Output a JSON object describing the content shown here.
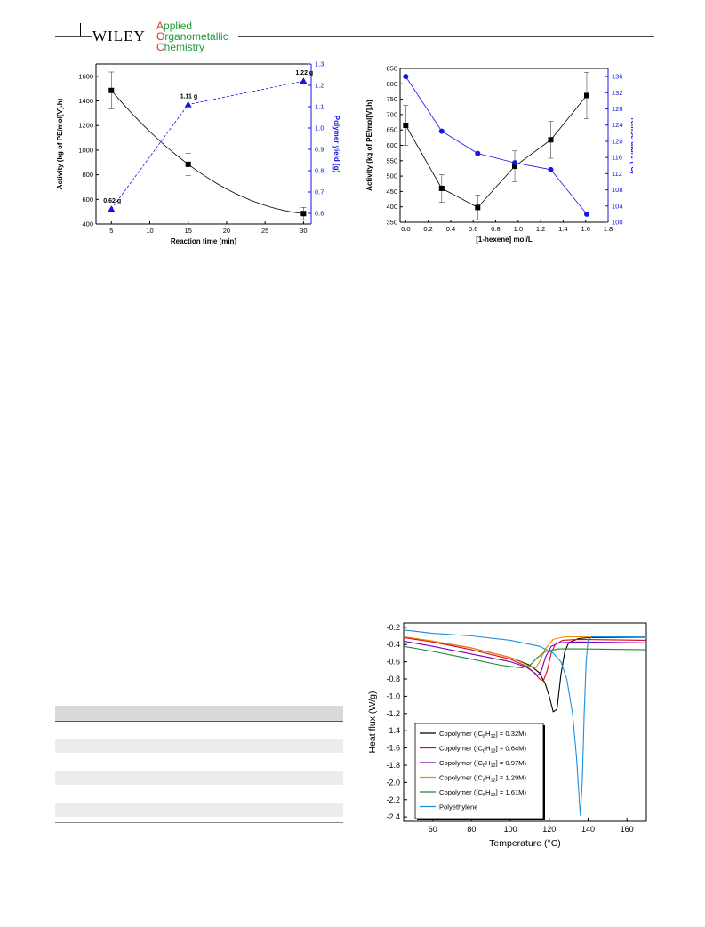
{
  "header": {
    "publisher": "WILEY",
    "journal_lines": [
      "Applied",
      "Organometallic",
      "Chemistry"
    ]
  },
  "colors": {
    "blue": "#1414e6",
    "black": "#000000",
    "table_header": "#d9d9d9",
    "table_band": "#ececec"
  },
  "chart_data": [
    {
      "type": "scatter",
      "xlabel": "Reaction time (min)",
      "ylabel": "Activity (kg of PE/mol[V].h)",
      "y2label": "Polymer yield (g)",
      "xlim": [
        3,
        31
      ],
      "ylim": [
        400,
        1700
      ],
      "y2lim": [
        0.55,
        1.3
      ],
      "x_ticks": [
        "5",
        "10",
        "15",
        "20",
        "25",
        "30"
      ],
      "y_ticks": [
        "400",
        "600",
        "800",
        "1000",
        "1200",
        "1400",
        "1600"
      ],
      "y2_ticks": [
        "0.6",
        "0.7",
        "0.8",
        "0.9",
        "1.0",
        "1.1",
        "1.2",
        "1.3"
      ],
      "series": [
        {
          "axis": "left",
          "color": "#000000",
          "marker": "square",
          "line": "fit",
          "x": [
            5,
            15,
            30
          ],
          "y": [
            1485,
            885,
            485
          ],
          "err": [
            150,
            90,
            50
          ]
        },
        {
          "axis": "right",
          "color": "#1414e6",
          "marker": "triangle",
          "line": "dashed",
          "x": [
            5,
            15,
            30
          ],
          "y": [
            0.62,
            1.11,
            1.22
          ],
          "labels": [
            "0.62 g",
            "1.11 g",
            "1.22 g"
          ]
        }
      ],
      "grid": false
    },
    {
      "type": "scatter",
      "xlabel": "[1-hexene] mol/L",
      "ylabel": "Activity (kg of PE/mol[V].h)",
      "y2label": "Temperature (°C)",
      "xlim": [
        -0.05,
        1.8
      ],
      "ylim": [
        350,
        850
      ],
      "y2lim": [
        100,
        138
      ],
      "x_ticks": [
        "0.0",
        "0.2",
        "0.4",
        "0.6",
        "0.8",
        "1.0",
        "1.2",
        "1.4",
        "1.6",
        "1.8"
      ],
      "y_ticks": [
        "350",
        "400",
        "450",
        "500",
        "550",
        "600",
        "650",
        "700",
        "750",
        "800",
        "850"
      ],
      "y2_ticks": [
        "100",
        "104",
        "108",
        "112",
        "116",
        "120",
        "124",
        "128",
        "132",
        "136"
      ],
      "series": [
        {
          "axis": "left",
          "color": "#000000",
          "marker": "square",
          "line": "solid",
          "x": [
            0,
            0.32,
            0.64,
            0.97,
            1.29,
            1.61
          ],
          "y": [
            665,
            460,
            398,
            532,
            618,
            762
          ],
          "err": [
            65,
            45,
            40,
            50,
            60,
            75
          ]
        },
        {
          "axis": "right",
          "color": "#1414e6",
          "marker": "circle",
          "line": "solid",
          "x": [
            0,
            0.32,
            0.64,
            0.97,
            1.29,
            1.61
          ],
          "y": [
            136,
            122.5,
            117,
            114.7,
            113,
            102
          ]
        }
      ],
      "grid": false
    },
    {
      "type": "line",
      "xlabel": "Temperature (°C)",
      "ylabel": "Heat flux (W/g)",
      "xlim": [
        45,
        170
      ],
      "ylim": [
        -2.45,
        -0.15
      ],
      "x_ticks": [
        "60",
        "80",
        "100",
        "120",
        "140",
        "160"
      ],
      "y_ticks": [
        "-0.2",
        "-0.4",
        "-0.6",
        "-0.8",
        "-1.0",
        "-1.2",
        "-1.4",
        "-1.6",
        "-1.8",
        "-2.0",
        "-2.2",
        "-2.4"
      ],
      "legend": "bottom-left",
      "series": [
        {
          "legend_prefix": "Copolymer ([C",
          "legend_value": " = 0.32M)",
          "color": "#000000",
          "x": [
            45,
            60,
            80,
            100,
            110,
            115,
            118,
            120,
            122,
            124,
            126,
            128,
            130,
            135,
            140,
            170
          ],
          "y": [
            -0.31,
            -0.36,
            -0.44,
            -0.55,
            -0.64,
            -0.73,
            -0.86,
            -1.0,
            -1.18,
            -1.15,
            -0.75,
            -0.48,
            -0.38,
            -0.33,
            -0.32,
            -0.32
          ]
        },
        {
          "legend_prefix": "Copolymer ([C",
          "legend_value": " = 0.64M)",
          "color": "#e4001b",
          "x": [
            45,
            60,
            80,
            100,
            108,
            112,
            115,
            117,
            119,
            121,
            123,
            127,
            135,
            170
          ],
          "y": [
            -0.32,
            -0.37,
            -0.46,
            -0.57,
            -0.65,
            -0.72,
            -0.8,
            -0.82,
            -0.7,
            -0.5,
            -0.4,
            -0.35,
            -0.34,
            -0.35
          ]
        },
        {
          "legend_prefix": "Copolymer ([C",
          "legend_value": " = 0.97M)",
          "color": "#7a00b4",
          "x": [
            45,
            60,
            80,
            100,
            108,
            112,
            114,
            116,
            118,
            121,
            125,
            135,
            170
          ],
          "y": [
            -0.36,
            -0.42,
            -0.51,
            -0.6,
            -0.66,
            -0.72,
            -0.76,
            -0.7,
            -0.55,
            -0.42,
            -0.38,
            -0.37,
            -0.38
          ]
        },
        {
          "legend_prefix": "Copolymer ([C",
          "legend_value": " = 1.29M)",
          "color": "#f08a00",
          "x": [
            45,
            60,
            80,
            100,
            106,
            110,
            113,
            115,
            118,
            122,
            128,
            135,
            170
          ],
          "y": [
            -0.31,
            -0.36,
            -0.44,
            -0.55,
            -0.61,
            -0.65,
            -0.67,
            -0.6,
            -0.45,
            -0.34,
            -0.31,
            -0.31,
            -0.32
          ]
        },
        {
          "legend_prefix": "Copolymer ([C",
          "legend_value": " = 1.61M)",
          "color": "#1a8a3a",
          "x": [
            45,
            60,
            80,
            95,
            102,
            106,
            110,
            114,
            118,
            125,
            135,
            170
          ],
          "y": [
            -0.42,
            -0.48,
            -0.57,
            -0.64,
            -0.66,
            -0.67,
            -0.64,
            -0.55,
            -0.48,
            -0.45,
            -0.45,
            -0.46
          ]
        },
        {
          "legend_text": "Polyethylene",
          "color": "#1e8fe0",
          "x": [
            45,
            60,
            80,
            100,
            115,
            122,
            126,
            129,
            132,
            134,
            136,
            137,
            138,
            139,
            140,
            142,
            150,
            170
          ],
          "y": [
            -0.23,
            -0.27,
            -0.3,
            -0.35,
            -0.42,
            -0.5,
            -0.6,
            -0.8,
            -1.2,
            -1.7,
            -2.38,
            -2.0,
            -1.2,
            -0.6,
            -0.35,
            -0.31,
            -0.31,
            -0.31
          ]
        }
      ],
      "grid": false
    }
  ]
}
